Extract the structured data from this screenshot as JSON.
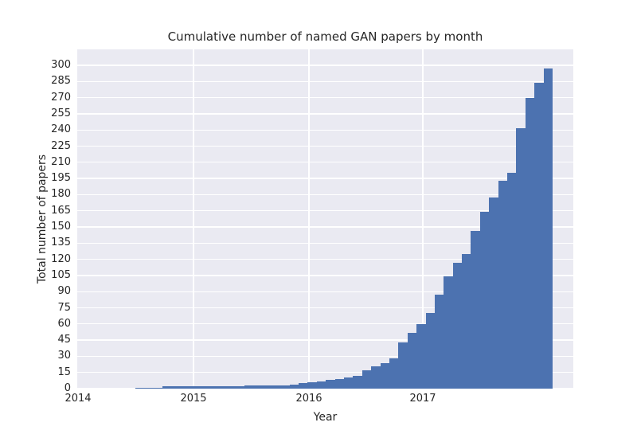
{
  "chart_data": {
    "type": "bar",
    "title": "Cumulative number of named GAN papers by month",
    "xlabel": "Year",
    "ylabel": "Total number of papers",
    "x_tick_labels": [
      "2014",
      "2015",
      "2016",
      "2017"
    ],
    "y_ticks": [
      0,
      15,
      30,
      45,
      60,
      75,
      90,
      105,
      120,
      135,
      150,
      165,
      180,
      195,
      210,
      225,
      240,
      255,
      270,
      285,
      300
    ],
    "ylim": [
      0,
      315
    ],
    "grid": true,
    "legend": false,
    "bar_color": "#4c72b0",
    "plot_bg_color": "#eaeaf2",
    "grid_color": "#ffffff",
    "text_color": "#262626",
    "figure_bg_color": "#ffffff",
    "months": [
      "2014-06",
      "2014-07",
      "2014-08",
      "2014-09",
      "2014-10",
      "2014-11",
      "2014-12",
      "2015-01",
      "2015-02",
      "2015-03",
      "2015-04",
      "2015-05",
      "2015-06",
      "2015-07",
      "2015-08",
      "2015-09",
      "2015-10",
      "2015-11",
      "2015-12",
      "2016-01",
      "2016-02",
      "2016-03",
      "2016-04",
      "2016-05",
      "2016-06",
      "2016-07",
      "2016-08",
      "2016-09",
      "2016-10",
      "2016-11",
      "2016-12",
      "2017-01",
      "2017-02",
      "2017-03",
      "2017-04",
      "2017-05",
      "2017-06",
      "2017-07",
      "2017-08",
      "2017-09",
      "2017-10",
      "2017-11",
      "2017-12",
      "2018-01",
      "2018-02",
      "2018-03"
    ],
    "values": [
      1,
      1,
      1,
      2,
      2,
      2,
      2,
      2,
      2,
      2,
      2,
      2,
      3,
      3,
      3,
      3,
      3,
      4,
      5,
      6,
      7,
      8,
      9,
      10,
      12,
      17,
      21,
      24,
      28,
      43,
      52,
      60,
      70,
      87,
      104,
      117,
      125,
      146,
      164,
      177,
      193,
      200,
      242,
      270,
      284,
      297
    ]
  }
}
